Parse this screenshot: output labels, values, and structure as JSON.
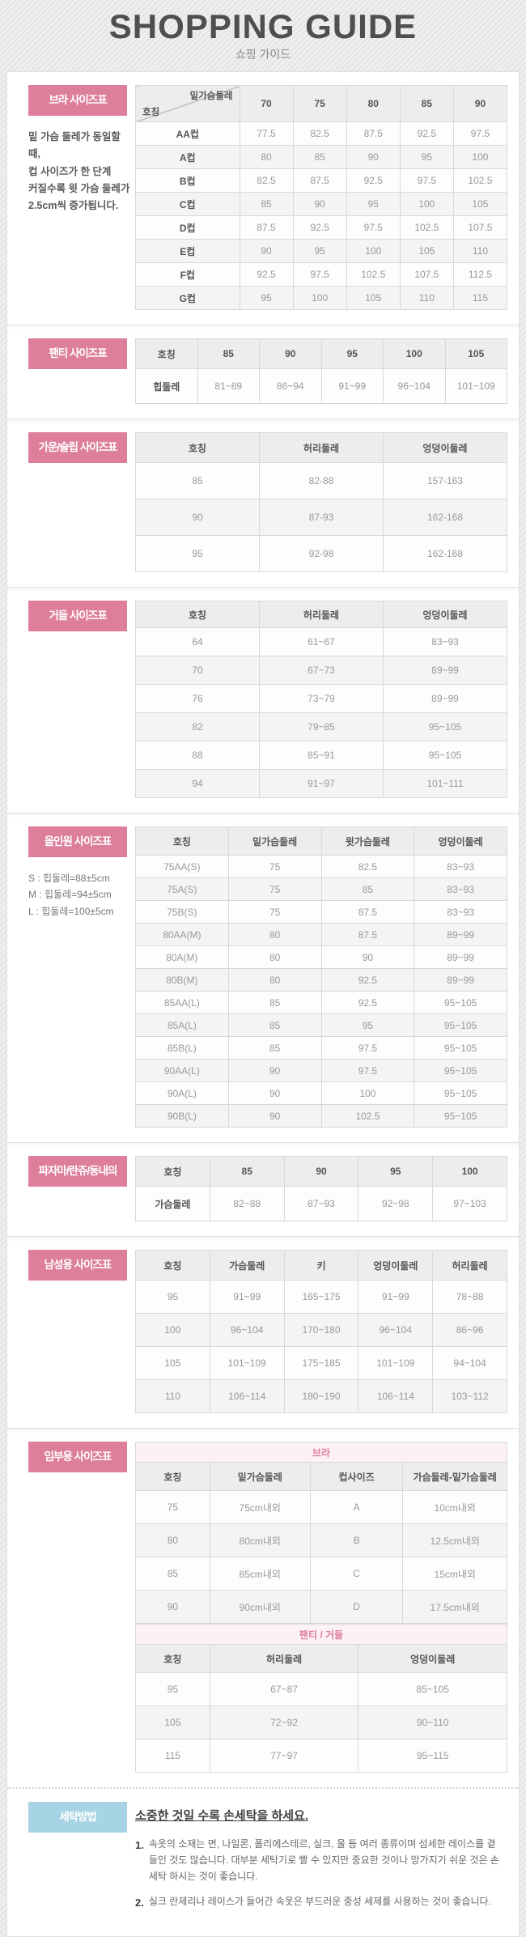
{
  "page": {
    "title": "SHOPPING GUIDE",
    "subtitle": "쇼핑 가이드"
  },
  "colors": {
    "accent_pink": "#dd7f9b",
    "accent_blue": "#a7d4e4",
    "banner_pink_bg": "#fcf1f5",
    "header_cell_bg": "#ededed",
    "page_bg": "#e9e9e9"
  },
  "sections": [
    {
      "label": "브라 사이즈표",
      "note_lines": [
        "밑 가슴 둘레가 동일할 때,",
        "컵 사이즈가 한 단계",
        "커질수록 윗 가슴 둘레가",
        "2.5cm씩 증가됩니다."
      ],
      "tables": [
        {
          "diag": {
            "top": "밑가슴둘레",
            "bottom": "호칭"
          },
          "headers": [
            "70",
            "75",
            "80",
            "85",
            "90"
          ],
          "first_col_header": true,
          "col_widths": [
            "28%",
            "14.4%",
            "14.4%",
            "14.4%",
            "14.4%",
            "14.4%"
          ],
          "rows": [
            [
              "AA컵",
              "77.5",
              "82.5",
              "87.5",
              "92.5",
              "97.5"
            ],
            [
              "A컵",
              "80",
              "85",
              "90",
              "95",
              "100"
            ],
            [
              "B컵",
              "82.5",
              "87.5",
              "92.5",
              "97.5",
              "102.5"
            ],
            [
              "C컵",
              "85",
              "90",
              "95",
              "100",
              "105"
            ],
            [
              "D컵",
              "87.5",
              "92.5",
              "97.5",
              "102.5",
              "107.5"
            ],
            [
              "E컵",
              "90",
              "95",
              "100",
              "105",
              "110"
            ],
            [
              "F컵",
              "92.5",
              "97.5",
              "102.5",
              "107.5",
              "112.5"
            ],
            [
              "G컵",
              "95",
              "100",
              "105",
              "110",
              "115"
            ]
          ]
        }
      ]
    },
    {
      "label": "팬티 사이즈표",
      "tables": [
        {
          "headers": [
            "호칭",
            "85",
            "90",
            "95",
            "100",
            "105"
          ],
          "first_col_header": true,
          "rows": [
            [
              "힙둘레",
              "81~89",
              "86~94",
              "91~99",
              "96~104",
              "101~109"
            ]
          ]
        }
      ]
    },
    {
      "label": "가운/슬립 사이즈표",
      "tables": [
        {
          "headers": [
            "호칭",
            "허리둘레",
            "엉덩이둘레"
          ],
          "first_col_header": false,
          "rows": [
            [
              "85",
              "82-88",
              "157-163"
            ],
            [
              "90",
              "87-93",
              "162-168"
            ],
            [
              "95",
              "92-98",
              "162-168"
            ]
          ]
        }
      ]
    },
    {
      "label": "거들 사이즈표",
      "tables": [
        {
          "headers": [
            "호칭",
            "허리둘레",
            "엉덩이둘레"
          ],
          "first_col_header": false,
          "rows": [
            [
              "64",
              "61~67",
              "83~93"
            ],
            [
              "70",
              "67~73",
              "89~99"
            ],
            [
              "76",
              "73~79",
              "89~99"
            ],
            [
              "82",
              "79~85",
              "95~105"
            ],
            [
              "88",
              "85~91",
              "95~105"
            ],
            [
              "94",
              "91~97",
              "101~111"
            ]
          ]
        }
      ]
    },
    {
      "label": "올인원 사이즈표",
      "note_lines": [
        "S : 힙둘레=88±5cm",
        "M : 힙둘레=94±5cm",
        "L : 힙둘레=100±5cm"
      ],
      "tables": [
        {
          "headers": [
            "호칭",
            "밑가슴둘레",
            "윗가슴둘레",
            "엉덩이둘레"
          ],
          "first_col_header": false,
          "rows": [
            [
              "75AA(S)",
              "75",
              "82.5",
              "83~93"
            ],
            [
              "75A(S)",
              "75",
              "85",
              "83~93"
            ],
            [
              "75B(S)",
              "75",
              "87.5",
              "83~93"
            ],
            [
              "80AA(M)",
              "80",
              "87.5",
              "89~99"
            ],
            [
              "80A(M)",
              "80",
              "90",
              "89~99"
            ],
            [
              "80B(M)",
              "80",
              "92.5",
              "89~99"
            ],
            [
              "85AA(L)",
              "85",
              "92.5",
              "95~105"
            ],
            [
              "85A(L)",
              "85",
              "95",
              "95~105"
            ],
            [
              "85B(L)",
              "85",
              "97.5",
              "95~105"
            ],
            [
              "90AA(L)",
              "90",
              "97.5",
              "95~105"
            ],
            [
              "90A(L)",
              "90",
              "100",
              "95~105"
            ],
            [
              "90B(L)",
              "90",
              "102.5",
              "95~105"
            ]
          ]
        }
      ]
    },
    {
      "label": "파자마/란쥬/동내의",
      "tables": [
        {
          "headers": [
            "호칭",
            "85",
            "90",
            "95",
            "100"
          ],
          "first_col_header": true,
          "rows": [
            [
              "가슴둘레",
              "82~88",
              "87~93",
              "92~98",
              "97~103"
            ]
          ]
        }
      ]
    },
    {
      "label": "남성용 사이즈표",
      "tables": [
        {
          "headers": [
            "호칭",
            "가슴둘레",
            "키",
            "엉덩이둘레",
            "허리둘레"
          ],
          "first_col_header": false,
          "rows": [
            [
              "95",
              "91~99",
              "165~175",
              "91~99",
              "78~88"
            ],
            [
              "100",
              "96~104",
              "170~180",
              "96~104",
              "86~96"
            ],
            [
              "105",
              "101~109",
              "175~185",
              "101~109",
              "94~104"
            ],
            [
              "110",
              "106~114",
              "180~190",
              "106~114",
              "103~112"
            ]
          ]
        }
      ]
    },
    {
      "label": "임부용 사이즈표",
      "tables": [
        {
          "banner": "브라",
          "headers": [
            "호칭",
            "밑가슴둘레",
            "컵사이즈",
            "가슴둘레-밑가슴둘레"
          ],
          "first_col_header": false,
          "col_widths": [
            "20%",
            "27%",
            "25%",
            "28%"
          ],
          "rows": [
            [
              "75",
              "75cm내외",
              "A",
              "10cm내외"
            ],
            [
              "80",
              "80cm내외",
              "B",
              "12.5cm내외"
            ],
            [
              "85",
              "85cm내외",
              "C",
              "15cm내외"
            ],
            [
              "90",
              "90cm내외",
              "D",
              "17.5cm내외"
            ]
          ]
        },
        {
          "banner": "팬티 / 거들",
          "headers": [
            "호칭",
            "허리둘레",
            "엉덩이둘레"
          ],
          "first_col_header": false,
          "col_widths": [
            "20%",
            "40%",
            "40%"
          ],
          "rows": [
            [
              "95",
              "67~87",
              "85~105"
            ],
            [
              "105",
              "72~92",
              "90~110"
            ],
            [
              "115",
              "77~97",
              "95~115"
            ]
          ]
        }
      ]
    }
  ],
  "washing": {
    "label": "세탁방법",
    "title": "소중한 것일 수록 손세탁을 하세요.",
    "items": [
      {
        "num": "1.",
        "text": "속옷의 소재는 면, 나일론, 폴리에스테르, 실크, 울 등 여러 종류이며 섬세한 레이스를 곁들인 것도 많습니다. 대부분 세탁기로 빨 수 있지만 중요한 것이나 망가지기 쉬운 것은 손세탁 하시는 것이 좋습니다."
      },
      {
        "num": "2.",
        "text": "실크 란제리나 레이스가 들어간 속옷은 부드러운 중성 세제를 사용하는 것이 좋습니다."
      }
    ]
  }
}
